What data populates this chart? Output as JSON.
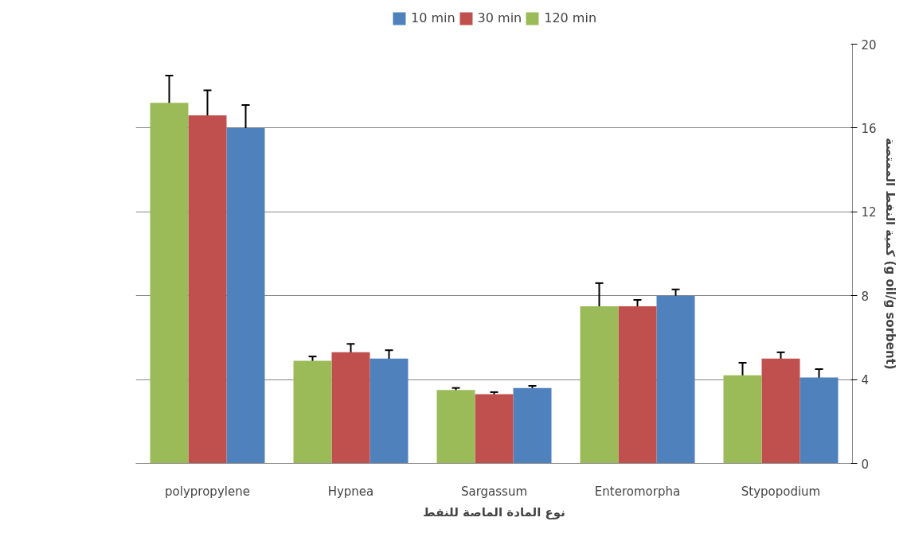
{
  "chart_data": {
    "type": "bar",
    "xlabel": "نوع المادة الماصة للنفط",
    "ylabel": "كمية النفط الممتصة (g oil/g sorbent)",
    "categories": [
      "polypropylene",
      "Hypnea",
      "Sargassum",
      "Enteromorpha",
      "Stypopodium"
    ],
    "series": [
      {
        "name": "10 min",
        "color": "#4f81bd",
        "values": [
          16.0,
          5.0,
          3.6,
          8.0,
          4.1
        ],
        "errors": [
          1.1,
          0.4,
          0.1,
          0.3,
          0.4
        ]
      },
      {
        "name": "30 min",
        "color": "#c0504d",
        "values": [
          16.6,
          5.3,
          3.3,
          7.5,
          5.0
        ],
        "errors": [
          1.2,
          0.4,
          0.1,
          0.3,
          0.3
        ]
      },
      {
        "name": "120 min",
        "color": "#9bbb59",
        "values": [
          17.2,
          4.9,
          3.5,
          7.5,
          4.2
        ],
        "errors": [
          1.3,
          0.2,
          0.1,
          1.1,
          0.6
        ]
      }
    ],
    "ylim": [
      0,
      20
    ],
    "yticks": [
      0,
      4,
      8,
      12,
      16,
      20
    ],
    "grid": "y",
    "legend": "top"
  }
}
